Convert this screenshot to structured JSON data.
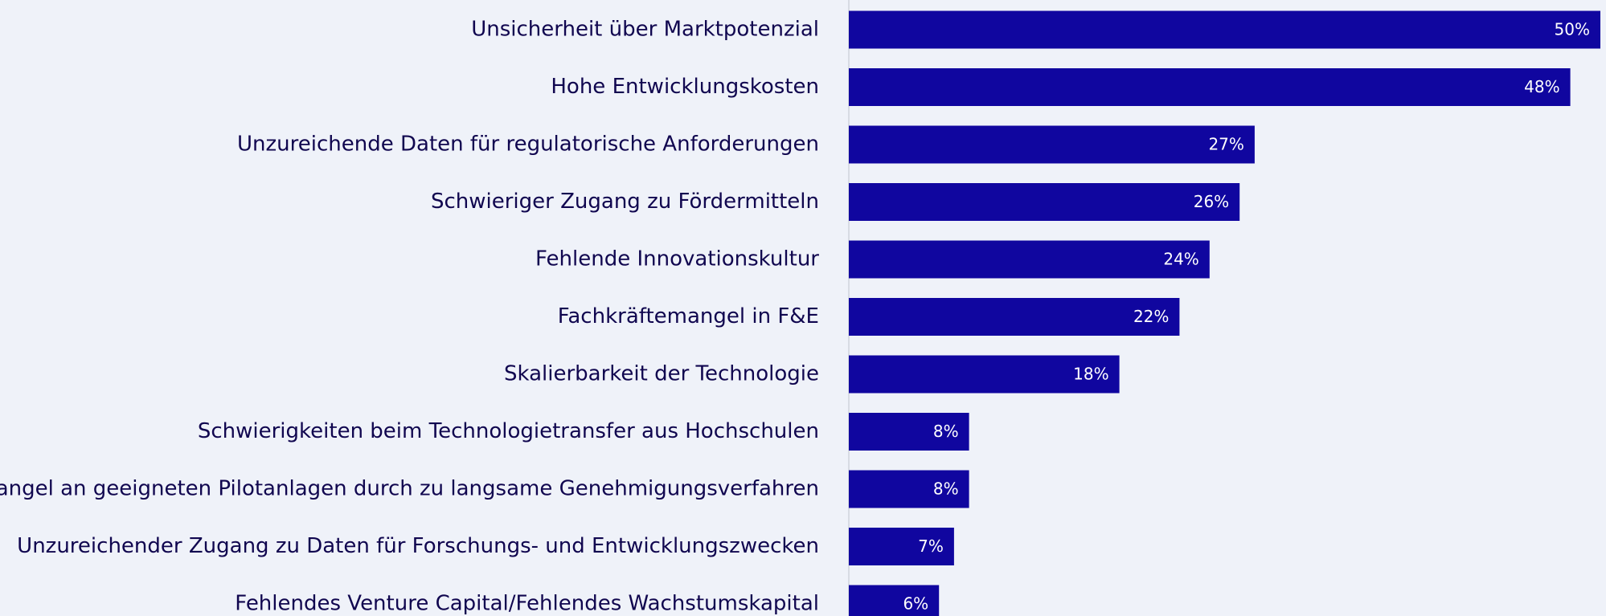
{
  "chart_data": {
    "type": "barh",
    "categories": [
      "Unsicherheit über Marktpotenzial",
      "Hohe Entwicklungskosten",
      "Unzureichende Daten für regulatorische Anforderungen",
      "Schwieriger Zugang zu Fördermitteln",
      "Fehlende Innovationskultur",
      "Fachkräftemangel in F&E",
      "Skalierbarkeit der Technologie",
      "Schwierigkeiten beim Technologietransfer aus Hochschulen",
      "Mangel an geeigneten Pilotanlagen durch zu langsame Genehmigungsverfahren",
      "Unzureichender Zugang zu Daten für Forschungs- und Entwicklungszwecken",
      "Fehlendes Venture Capital/Fehlendes Wachstumskapital"
    ],
    "values": [
      50,
      48,
      27,
      26,
      24,
      22,
      18,
      8,
      8,
      7,
      6
    ],
    "value_labels": [
      "50%",
      "48%",
      "27%",
      "26%",
      "24%",
      "22%",
      "18%",
      "8%",
      "8%",
      "7%",
      "6%"
    ],
    "color": "#10069f"
  }
}
